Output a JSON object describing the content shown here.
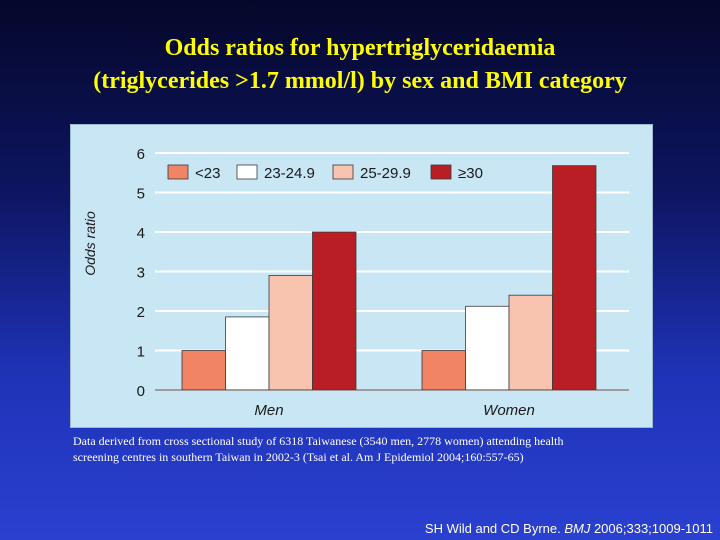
{
  "slide": {
    "title_line1": "Odds ratios for hypertriglyceridaemia",
    "title_line2": "(triglycerides >1.7 mmol/l) by sex and BMI category",
    "note_line1": "Data derived from cross sectional study of 6318 Taiwanese (3540 men, 2778 women) attending health",
    "note_line2": "screening centres in southern Taiwan in 2002-3 (Tsai et al. Am J Epidemiol 2004;160:557-65)",
    "citation_authors": "SH Wild and CD Byrne. ",
    "citation_journal": "BMJ",
    "citation_ref": " 2006;333;1009-1011"
  },
  "chart_data": {
    "type": "bar",
    "categories": [
      "Men",
      "Women"
    ],
    "series": [
      {
        "name": "<23",
        "values": [
          1.0,
          1.0
        ],
        "color": "#f08464"
      },
      {
        "name": "23-24.9",
        "values": [
          1.85,
          2.12
        ],
        "color": "#ffffff"
      },
      {
        "name": "25-29.9",
        "values": [
          2.9,
          2.4
        ],
        "color": "#f8c4b0"
      },
      {
        "name": "≥30",
        "values": [
          4.0,
          5.68
        ],
        "color": "#b81e24"
      }
    ],
    "ylabel": "Odds ratio",
    "xlabel": "",
    "ylim": [
      0,
      6
    ],
    "yticks": [
      0,
      1,
      2,
      3,
      4,
      5,
      6
    ],
    "grid": true,
    "legend": "top",
    "plot_background": "#c9e6f5",
    "grid_color": "#ffffff"
  }
}
